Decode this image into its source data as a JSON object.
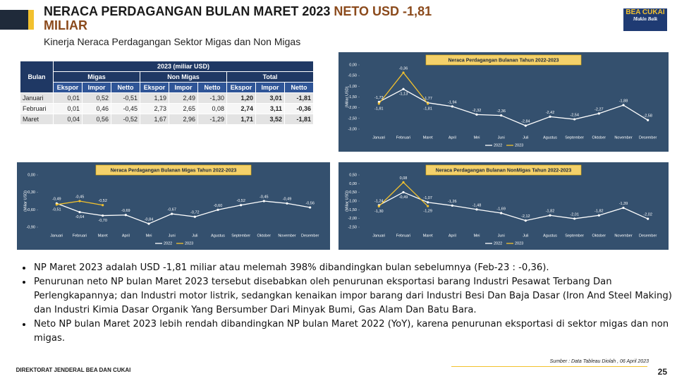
{
  "header": {
    "title": "NERACA  PERDAGANGAN  BULAN MARET 2023",
    "title_highlight": "NETO USD -1,81 MILIAR",
    "subtitle": "Kinerja Neraca Perdagangan Sektor Migas dan Non Migas",
    "logo": "BEA CUKAI",
    "logo_tagline": "Makin Baik"
  },
  "table": {
    "corner": "Bulan",
    "title": "2023 (miliar USD)",
    "groups": [
      "Migas",
      "Non Migas",
      "Total"
    ],
    "subheaders": [
      "Ekspor",
      "Impor",
      "Netto"
    ],
    "rows": [
      [
        "Januari",
        "0,01",
        "0,52",
        "-0,51",
        "1,19",
        "2,49",
        "-1,30",
        "1,20",
        "3,01",
        "-1,81"
      ],
      [
        "Februari",
        "0,01",
        "0,46",
        "-0,45",
        "2,73",
        "2,65",
        "0,08",
        "2,74",
        "3,11",
        "-0,36"
      ],
      [
        "Maret",
        "0,04",
        "0,56",
        "-0,52",
        "1,67",
        "2,96",
        "-1,29",
        "1,71",
        "3,52",
        "-1,81"
      ]
    ]
  },
  "chart_data": [
    {
      "type": "line",
      "title": "Neraca Perdagangan Bulanan Tahun 2022-2023",
      "y_label": "(Miliar USD)",
      "categories": [
        "Januari",
        "Februari",
        "Maret",
        "April",
        "Mei",
        "Juni",
        "Juli",
        "Agustus",
        "September",
        "Oktober",
        "November",
        "Desember"
      ],
      "series": [
        {
          "name": "2022",
          "color": "#ffffff",
          "values": [
            -1.73,
            -1.13,
            -1.77,
            -1.94,
            -2.32,
            -2.36,
            -2.84,
            -2.42,
            -2.54,
            -2.27,
            -1.88,
            -2.58
          ],
          "value_labels": [
            "-1,73",
            "-1,13",
            "-1,77",
            "-1,94",
            "-2,32",
            "-2,36",
            "-2,84",
            "-2,42",
            "-2,54",
            "-2,27",
            "-1,88",
            "-2,58"
          ]
        },
        {
          "name": "2023",
          "color": "#f2c12e",
          "values": [
            -1.81,
            -0.36,
            -1.81,
            null,
            null,
            null,
            null,
            null,
            null,
            null,
            null,
            null
          ],
          "value_labels": [
            "-1,81",
            "-0,36",
            "-1,81",
            null,
            null,
            null,
            null,
            null,
            null,
            null,
            null,
            null
          ]
        }
      ],
      "ylim": [
        -3,
        0
      ],
      "yticks": [
        {
          "value": 0,
          "label": "0,00"
        },
        {
          "value": -0.5,
          "label": "-0,50"
        },
        {
          "value": -1,
          "label": "-1,00"
        },
        {
          "value": -1.5,
          "label": "-1,50"
        },
        {
          "value": -2,
          "label": "-2,00"
        },
        {
          "value": -2.5,
          "label": "-2,50"
        },
        {
          "value": -3,
          "label": "-3,00"
        }
      ],
      "grid": false
    },
    {
      "type": "line",
      "title": "Neraca Perdagangan Bulanan Migas Tahun 2022-2023",
      "y_label": "(Miliar USD)",
      "categories": [
        "Januari",
        "Februari",
        "Maret",
        "April",
        "Mei",
        "Juni",
        "Juli",
        "Agustus",
        "September",
        "Oktober",
        "November",
        "Desember"
      ],
      "series": [
        {
          "name": "2022",
          "color": "#ffffff",
          "values": [
            -0.49,
            -0.64,
            -0.7,
            -0.69,
            -0.84,
            -0.67,
            -0.72,
            -0.6,
            -0.52,
            -0.45,
            -0.49,
            -0.56
          ],
          "value_labels": [
            "-0,49",
            "-0,64",
            "-0,70",
            "-0,69",
            "-0,84",
            "-0,67",
            "-0,72",
            "-0,60",
            "-0,52",
            "-0,45",
            "-0,49",
            "-0,56"
          ]
        },
        {
          "name": "2023",
          "color": "#f2c12e",
          "values": [
            -0.51,
            -0.45,
            -0.52,
            null,
            null,
            null,
            null,
            null,
            null,
            null,
            null,
            null
          ],
          "value_labels": [
            "-0,51",
            "-0,45",
            "-0,52",
            null,
            null,
            null,
            null,
            null,
            null,
            null,
            null,
            null
          ]
        }
      ],
      "ylim": [
        -0.9,
        0
      ],
      "yticks": [
        {
          "value": 0,
          "label": "0,00"
        },
        {
          "value": -0.3,
          "label": "-0,30"
        },
        {
          "value": -0.6,
          "label": "-0,60"
        },
        {
          "value": -0.9,
          "label": "-0,90"
        }
      ],
      "grid": false
    },
    {
      "type": "line",
      "title": "Neraca Perdagangan Bulanan NonMigas Tahun 2022-2023",
      "y_label": "(Miliar USD)",
      "categories": [
        "Januari",
        "Februari",
        "Maret",
        "April",
        "Mei",
        "Juni",
        "Juli",
        "Agustus",
        "September",
        "Oktober",
        "November",
        "Desember"
      ],
      "series": [
        {
          "name": "2022",
          "color": "#ffffff",
          "values": [
            -1.24,
            -0.49,
            -1.07,
            -1.26,
            -1.48,
            -1.69,
            -2.12,
            -1.82,
            -2.01,
            -1.82,
            -1.39,
            -2.02
          ],
          "value_labels": [
            "-1,24",
            "-0,49",
            "-1,07",
            "-1,26",
            "-1,48",
            "-1,69",
            "-2,12",
            "-1,82",
            "-2,01",
            "-1,82",
            "-1,39",
            "-2,02"
          ]
        },
        {
          "name": "2023",
          "color": "#f2c12e",
          "values": [
            -1.3,
            0.08,
            -1.29,
            null,
            null,
            null,
            null,
            null,
            null,
            null,
            null,
            null
          ],
          "value_labels": [
            "-1,30",
            "0,08",
            "-1,29",
            null,
            null,
            null,
            null,
            null,
            null,
            null,
            null,
            null
          ]
        }
      ],
      "ylim": [
        -2.5,
        0.5
      ],
      "yticks": [
        {
          "value": 0.5,
          "label": "0,50"
        },
        {
          "value": 0,
          "label": "0,00"
        },
        {
          "value": -0.5,
          "label": "-0,50"
        },
        {
          "value": -1,
          "label": "-1,00"
        },
        {
          "value": -1.5,
          "label": "-1,50"
        },
        {
          "value": -2,
          "label": "-2,00"
        },
        {
          "value": -2.5,
          "label": "-2,50"
        }
      ],
      "grid": false
    }
  ],
  "bullets": [
    "NP Maret 2023 adalah USD -1,81 miliar atau melemah 398% dibandingkan  bulan sebelumnya (Feb-23 : -0,36).",
    "Penurunan neto NP bulan Maret 2023 tersebut disebabkan oleh penurunan eksportasi barang Industri Pesawat Terbang Dan Perlengkapannya; dan Industri motor listrik, sedangkan kenaikan impor barang dari Industri Besi Dan Baja Dasar (Iron And Steel Making) dan Industri Kimia Dasar Organik Yang Bersumber Dari Minyak Bumi, Gas Alam Dan Batu Bara.",
    "Neto NP bulan Maret 2023 lebih rendah dibandingkan NP bulan Maret 2022 (YoY), karena penurunan eksportasi di sektor migas dan non migas."
  ],
  "footer": {
    "source": "Sumber  : Data Tableau  Diolah , 06 April 2023",
    "org": "DIREKTORAT  JENDERAL  BEA DAN CUKAI",
    "page": "25"
  }
}
